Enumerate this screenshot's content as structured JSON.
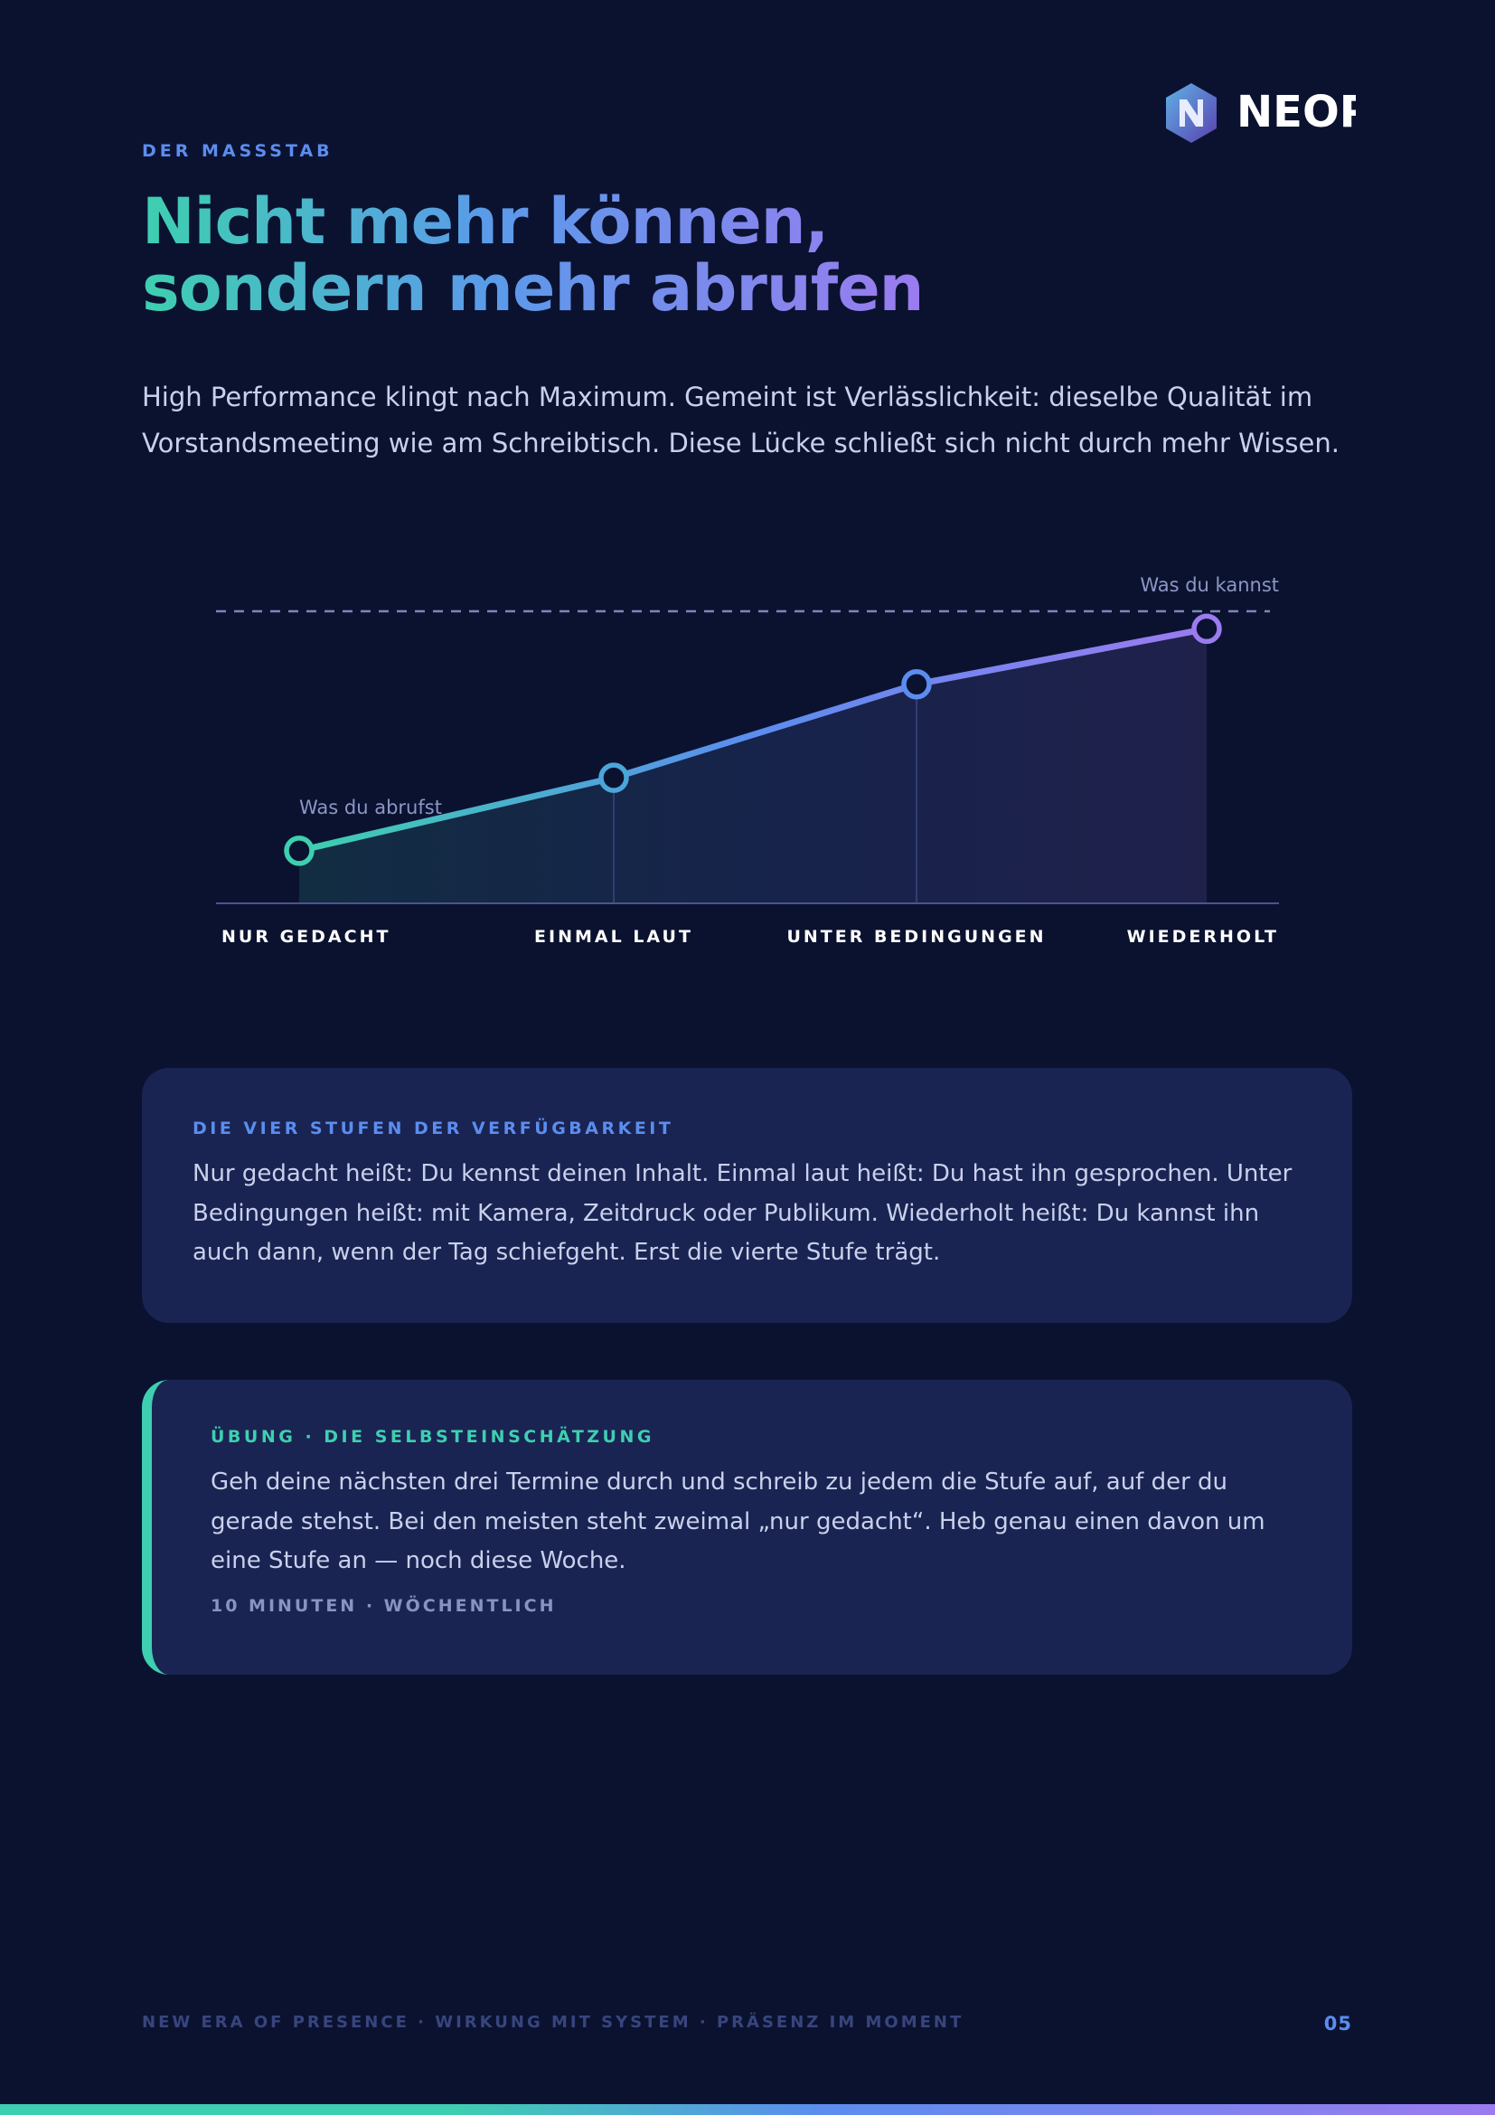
{
  "header": {
    "eyebrow": "DER MASSSTAB",
    "title_lines": [
      "Nicht mehr können,",
      "sondern mehr abrufen"
    ],
    "intro": "High Performance klingt nach Maximum. Gemeint ist Verlässlichkeit: dieselbe Qualität im Vorstandsmeeting wie am Schreibtisch. Diese Lücke schließt sich nicht durch mehr Wissen."
  },
  "logo": {
    "text": "NEOP"
  },
  "chart_data": {
    "type": "line",
    "categories": [
      "NUR GEDACHT",
      "EINMAL LAUT",
      "UNTER BEDINGUNGEN",
      "WIEDERHOLT"
    ],
    "values": [
      18,
      43,
      75,
      94
    ],
    "colors": [
      "#3ecfb0",
      "#5b8def",
      "#9b7bef"
    ],
    "ylim": [
      0,
      100
    ],
    "annotations": [
      "Was du abrufst",
      "Was du kannst"
    ]
  },
  "cards": [
    {
      "label": "DIE VIER STUFEN DER VERFÜGBARKEIT",
      "text": "Nur gedacht heißt: Du kennst deinen Inhalt. Einmal laut heißt: Du hast ihn gesprochen. Unter Bedingungen heißt: mit Kamera, Zeitdruck oder Publikum. Wiederholt heißt: Du kannst ihn auch dann, wenn der Tag schiefgeht. Erst die vierte Stufe trägt."
    },
    {
      "label": "ÜBUNG · DIE SELBSTEINSCHÄTZUNG",
      "text": "Geh deine nächsten drei Termine durch und schreib zu jedem die Stufe auf, auf der du gerade stehst. Bei den meisten steht zweimal „nur gedacht“. Heb genau einen davon um eine Stufe an — noch diese Woche.",
      "meta": "10 MINUTEN · WÖCHENTLICH"
    }
  ],
  "footer": {
    "tagline": "NEW ERA OF PRESENCE · WIRKUNG MIT SYSTEM · PRÄSENZ IM MOMENT",
    "page": "05"
  }
}
